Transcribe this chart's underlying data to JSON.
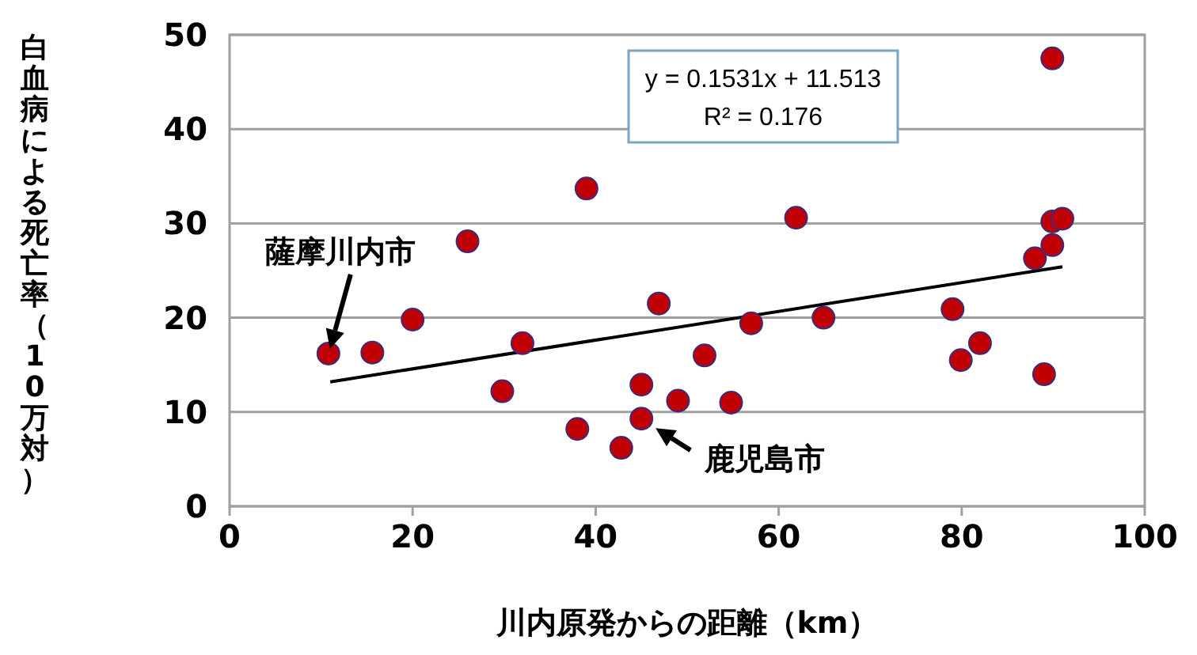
{
  "chart_data": {
    "type": "scatter",
    "xlabel": "川内原発からの距離（km）",
    "ylabel": "白血病による死亡率（10万対）",
    "xlim": [
      0,
      100
    ],
    "xticks": [
      0,
      20,
      40,
      60,
      80,
      100
    ],
    "ylim": [
      0,
      50
    ],
    "yticks": [
      0,
      10,
      20,
      30,
      40,
      50
    ],
    "grid": "y",
    "series": [
      {
        "marker": "circle",
        "color": "#c00000",
        "x": [
          10.8,
          15.6,
          20.0,
          26.0,
          29.8,
          32.0,
          38.0,
          39.0,
          42.8,
          45.0,
          45.0,
          46.9,
          49.0,
          51.9,
          54.8,
          57.0,
          61.9,
          64.9,
          79.0,
          79.9,
          82.0,
          88.0,
          89.0,
          89.9,
          89.9,
          91.0,
          89.9
        ],
        "values": [
          16.2,
          16.3,
          19.8,
          28.1,
          12.2,
          17.3,
          8.2,
          33.7,
          6.2,
          12.9,
          9.3,
          21.5,
          11.2,
          16.0,
          11.0,
          19.4,
          30.6,
          20.0,
          20.9,
          15.5,
          17.3,
          26.3,
          14.0,
          47.5,
          30.2,
          30.5,
          27.7
        ]
      },
      {
        "type": "line",
        "marker": "none",
        "color": "#000000",
        "x": [
          11,
          91
        ],
        "values": [
          13.2,
          25.4
        ]
      }
    ],
    "annotations": [
      "y = 0.1531x + 11.513\nR² = 0.176",
      {
        "text": "薩摩川内市",
        "x": 10.8,
        "y": 16.2
      },
      {
        "text": "鹿児島市",
        "x": 45.0,
        "y": 9.3
      }
    ]
  }
}
